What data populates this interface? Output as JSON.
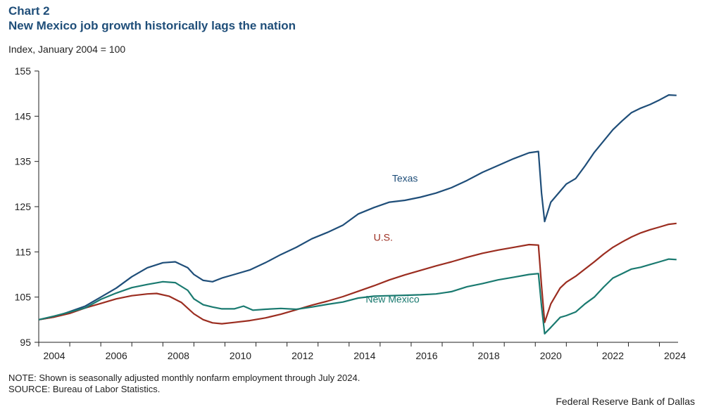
{
  "header": {
    "chart_number": "Chart 2",
    "title": "New Mexico job growth historically lags the nation",
    "y_unit": "Index, January 2004 = 100"
  },
  "footer": {
    "note": "NOTE: Shown is seasonally adjusted monthly nonfarm employment through July 2024.",
    "source": "SOURCE: Bureau of Labor Statistics.",
    "credit": "Federal Reserve Bank of Dallas"
  },
  "chart_data": {
    "type": "line",
    "title": "New Mexico job growth historically lags the nation",
    "ylabel": "Index, January 2004 = 100",
    "xlabel": "",
    "ylim": [
      95,
      155
    ],
    "yticks": [
      95,
      105,
      115,
      125,
      135,
      145,
      155
    ],
    "xlim": [
      2004.0,
      2024.6
    ],
    "xticks": [
      2004,
      2006,
      2008,
      2010,
      2012,
      2014,
      2016,
      2018,
      2020,
      2022,
      2024
    ],
    "grid": false,
    "legend": "inline labels",
    "series": [
      {
        "name": "Texas",
        "color": "#1f4e79",
        "label_position": [
          2015.8,
          130.5
        ],
        "points": [
          [
            2004.0,
            100.0
          ],
          [
            2004.5,
            100.6
          ],
          [
            2005.0,
            101.8
          ],
          [
            2005.5,
            103.0
          ],
          [
            2006.0,
            105.0
          ],
          [
            2006.5,
            107.0
          ],
          [
            2007.0,
            109.5
          ],
          [
            2007.5,
            111.5
          ],
          [
            2008.0,
            112.6
          ],
          [
            2008.4,
            112.8
          ],
          [
            2008.8,
            111.5
          ],
          [
            2009.0,
            110.0
          ],
          [
            2009.3,
            108.7
          ],
          [
            2009.6,
            108.4
          ],
          [
            2009.9,
            109.2
          ],
          [
            2010.3,
            110.0
          ],
          [
            2010.8,
            111.0
          ],
          [
            2011.3,
            112.6
          ],
          [
            2011.8,
            114.4
          ],
          [
            2012.3,
            116.0
          ],
          [
            2012.8,
            117.9
          ],
          [
            2013.3,
            119.3
          ],
          [
            2013.8,
            120.9
          ],
          [
            2014.3,
            123.4
          ],
          [
            2014.8,
            124.8
          ],
          [
            2015.3,
            126.0
          ],
          [
            2015.8,
            126.4
          ],
          [
            2016.3,
            127.1
          ],
          [
            2016.8,
            128.0
          ],
          [
            2017.3,
            129.2
          ],
          [
            2017.8,
            130.8
          ],
          [
            2018.3,
            132.6
          ],
          [
            2018.8,
            134.1
          ],
          [
            2019.3,
            135.6
          ],
          [
            2019.8,
            136.9
          ],
          [
            2020.1,
            137.2
          ],
          [
            2020.2,
            128.0
          ],
          [
            2020.3,
            121.7
          ],
          [
            2020.5,
            126.0
          ],
          [
            2020.8,
            128.4
          ],
          [
            2021.0,
            130.0
          ],
          [
            2021.3,
            131.2
          ],
          [
            2021.6,
            134.0
          ],
          [
            2021.9,
            137.0
          ],
          [
            2022.2,
            139.5
          ],
          [
            2022.5,
            142.0
          ],
          [
            2022.8,
            144.0
          ],
          [
            2023.1,
            145.8
          ],
          [
            2023.4,
            146.8
          ],
          [
            2023.7,
            147.6
          ],
          [
            2024.0,
            148.6
          ],
          [
            2024.3,
            149.7
          ],
          [
            2024.55,
            149.6
          ]
        ]
      },
      {
        "name": "U.S.",
        "color": "#9b2d20",
        "label_position": [
          2015.1,
          117.5
        ],
        "points": [
          [
            2004.0,
            100.0
          ],
          [
            2004.5,
            100.6
          ],
          [
            2005.0,
            101.4
          ],
          [
            2005.5,
            102.6
          ],
          [
            2006.0,
            103.6
          ],
          [
            2006.5,
            104.6
          ],
          [
            2007.0,
            105.3
          ],
          [
            2007.5,
            105.7
          ],
          [
            2007.8,
            105.8
          ],
          [
            2008.2,
            105.2
          ],
          [
            2008.6,
            103.8
          ],
          [
            2009.0,
            101.3
          ],
          [
            2009.3,
            100.0
          ],
          [
            2009.6,
            99.3
          ],
          [
            2009.9,
            99.1
          ],
          [
            2010.3,
            99.4
          ],
          [
            2010.8,
            99.8
          ],
          [
            2011.3,
            100.4
          ],
          [
            2011.8,
            101.2
          ],
          [
            2012.3,
            102.2
          ],
          [
            2012.8,
            103.2
          ],
          [
            2013.3,
            104.1
          ],
          [
            2013.8,
            105.1
          ],
          [
            2014.3,
            106.3
          ],
          [
            2014.8,
            107.5
          ],
          [
            2015.3,
            108.8
          ],
          [
            2015.8,
            109.9
          ],
          [
            2016.3,
            110.9
          ],
          [
            2016.8,
            111.9
          ],
          [
            2017.3,
            112.8
          ],
          [
            2017.8,
            113.8
          ],
          [
            2018.3,
            114.7
          ],
          [
            2018.8,
            115.4
          ],
          [
            2019.3,
            116.0
          ],
          [
            2019.8,
            116.6
          ],
          [
            2020.1,
            116.5
          ],
          [
            2020.2,
            107.5
          ],
          [
            2020.3,
            99.4
          ],
          [
            2020.5,
            103.5
          ],
          [
            2020.8,
            107.0
          ],
          [
            2021.0,
            108.3
          ],
          [
            2021.3,
            109.6
          ],
          [
            2021.6,
            111.2
          ],
          [
            2021.9,
            112.8
          ],
          [
            2022.2,
            114.5
          ],
          [
            2022.5,
            116.0
          ],
          [
            2022.8,
            117.2
          ],
          [
            2023.1,
            118.3
          ],
          [
            2023.4,
            119.2
          ],
          [
            2023.7,
            119.9
          ],
          [
            2024.0,
            120.5
          ],
          [
            2024.3,
            121.1
          ],
          [
            2024.55,
            121.3
          ]
        ]
      },
      {
        "name": "New Mexico",
        "color": "#1a7a70",
        "label_position": [
          2015.4,
          103.8
        ],
        "points": [
          [
            2004.0,
            100.0
          ],
          [
            2004.5,
            100.8
          ],
          [
            2005.0,
            101.7
          ],
          [
            2005.5,
            102.6
          ],
          [
            2006.0,
            104.5
          ],
          [
            2006.5,
            105.9
          ],
          [
            2007.0,
            107.1
          ],
          [
            2007.5,
            107.8
          ],
          [
            2008.0,
            108.4
          ],
          [
            2008.4,
            108.2
          ],
          [
            2008.8,
            106.5
          ],
          [
            2009.0,
            104.6
          ],
          [
            2009.3,
            103.3
          ],
          [
            2009.6,
            102.8
          ],
          [
            2009.9,
            102.4
          ],
          [
            2010.3,
            102.4
          ],
          [
            2010.6,
            103.0
          ],
          [
            2010.9,
            102.1
          ],
          [
            2011.3,
            102.3
          ],
          [
            2011.8,
            102.5
          ],
          [
            2012.3,
            102.3
          ],
          [
            2012.8,
            102.8
          ],
          [
            2013.3,
            103.4
          ],
          [
            2013.8,
            103.9
          ],
          [
            2014.3,
            104.8
          ],
          [
            2014.8,
            105.2
          ],
          [
            2015.3,
            105.3
          ],
          [
            2015.8,
            105.4
          ],
          [
            2016.3,
            105.5
          ],
          [
            2016.8,
            105.7
          ],
          [
            2017.3,
            106.2
          ],
          [
            2017.8,
            107.3
          ],
          [
            2018.3,
            108.0
          ],
          [
            2018.8,
            108.8
          ],
          [
            2019.3,
            109.4
          ],
          [
            2019.8,
            110.0
          ],
          [
            2020.1,
            110.2
          ],
          [
            2020.2,
            103.0
          ],
          [
            2020.3,
            96.9
          ],
          [
            2020.5,
            98.3
          ],
          [
            2020.8,
            100.5
          ],
          [
            2021.0,
            100.9
          ],
          [
            2021.3,
            101.7
          ],
          [
            2021.6,
            103.5
          ],
          [
            2021.9,
            105.0
          ],
          [
            2022.2,
            107.2
          ],
          [
            2022.5,
            109.2
          ],
          [
            2022.8,
            110.2
          ],
          [
            2023.1,
            111.2
          ],
          [
            2023.4,
            111.6
          ],
          [
            2023.7,
            112.2
          ],
          [
            2024.0,
            112.8
          ],
          [
            2024.3,
            113.4
          ],
          [
            2024.55,
            113.3
          ]
        ]
      }
    ]
  }
}
